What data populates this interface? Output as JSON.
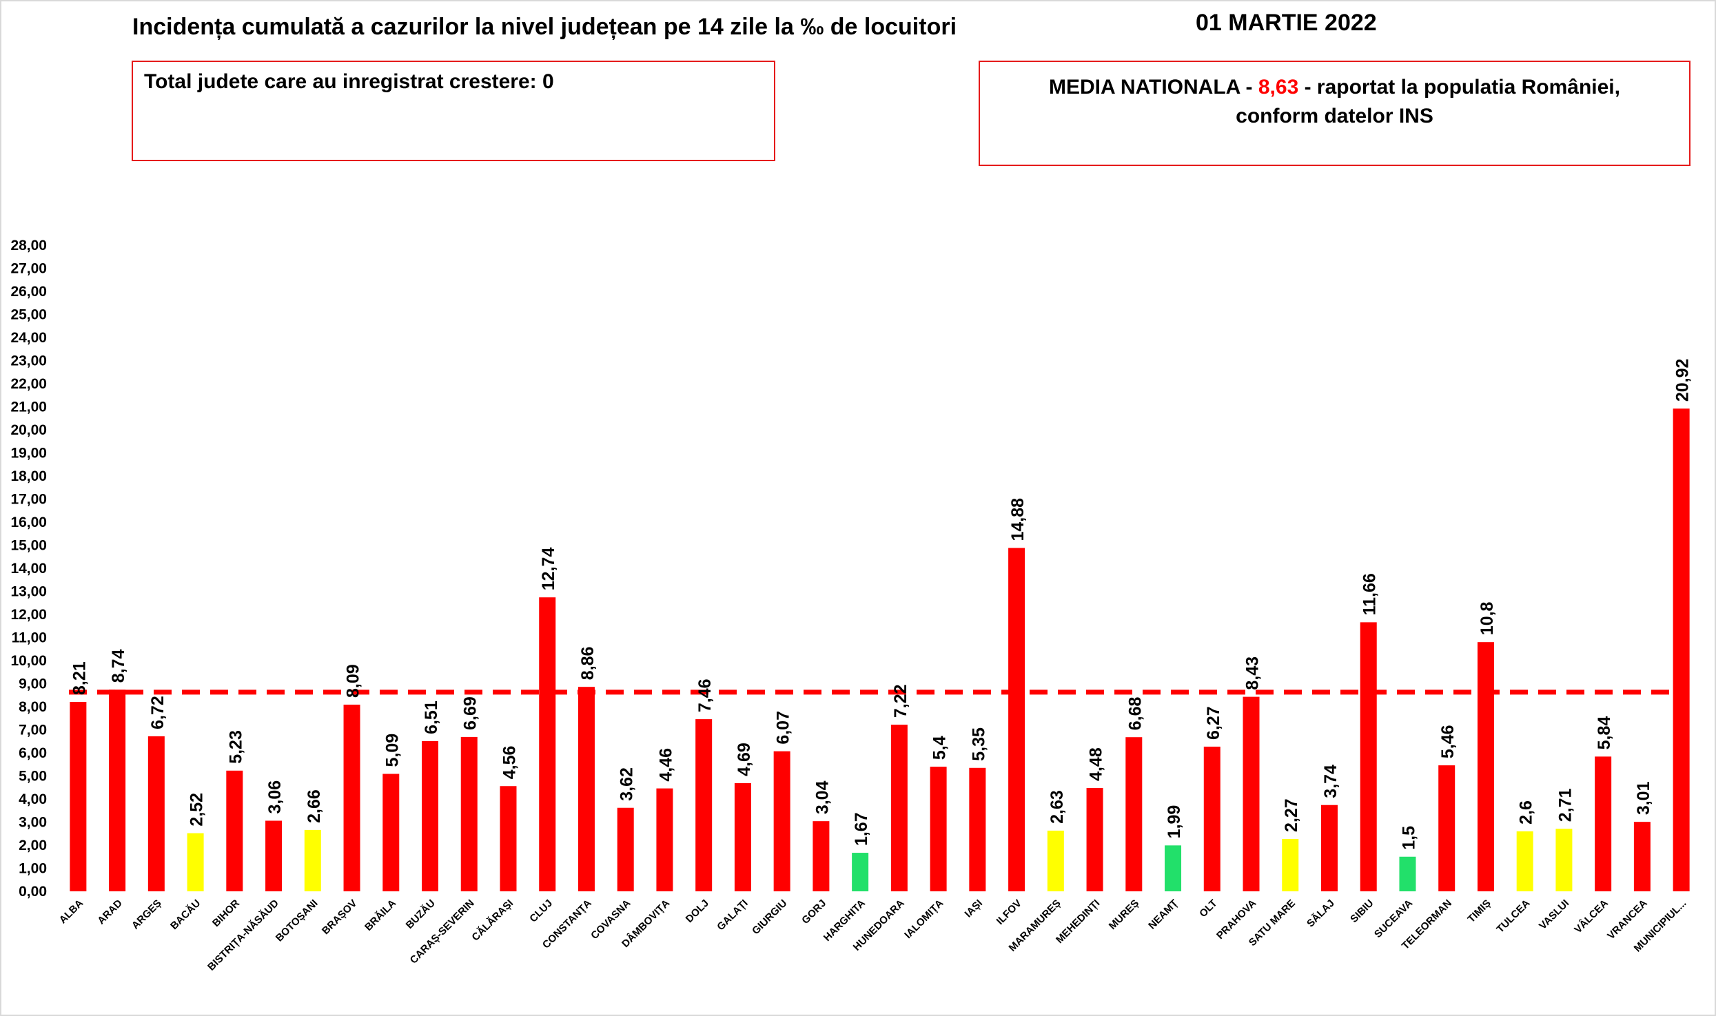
{
  "title": "Incidența cumulată a cazurilor la nivel județean pe 14 zile la ‰ de locuitori",
  "date": "01 MARTIE 2022",
  "box_left": {
    "text": "Total judete care au inregistrat crestere: 0"
  },
  "box_right": {
    "prefix": "MEDIA NATIONALA - ",
    "value": "8,63",
    "suffix": " -  raportat la populatia României,",
    "line2": "conform datelor INS"
  },
  "colors": {
    "red": "#ff0000",
    "yellow": "#ffff00",
    "green": "#22e06a",
    "average_line": "#ff0000",
    "box_border": "#e51a1a"
  },
  "chart_data": {
    "type": "bar",
    "ylim": [
      0,
      28
    ],
    "ytick_step": 1,
    "ytick_labels": [
      "0,00",
      "1,00",
      "2,00",
      "3,00",
      "4,00",
      "5,00",
      "6,00",
      "7,00",
      "8,00",
      "9,00",
      "10,00",
      "11,00",
      "12,00",
      "13,00",
      "14,00",
      "15,00",
      "16,00",
      "17,00",
      "18,00",
      "19,00",
      "20,00",
      "21,00",
      "22,00",
      "23,00",
      "24,00",
      "25,00",
      "26,00",
      "27,00",
      "28,00"
    ],
    "average": 8.63,
    "categories": [
      "ALBA",
      "ARAD",
      "ARGEȘ",
      "BACĂU",
      "BIHOR",
      "BISTRIȚA-NĂSĂUD",
      "BOTOȘANI",
      "BRAȘOV",
      "BRĂILA",
      "BUZĂU",
      "CARAȘ-SEVERIN",
      "CĂLĂRAȘI",
      "CLUJ",
      "CONSTANȚA",
      "COVASNA",
      "DÂMBOVIȚA",
      "DOLJ",
      "GALAȚI",
      "GIURGIU",
      "GORJ",
      "HARGHITA",
      "HUNEDOARA",
      "IALOMIȚA",
      "IAȘI",
      "ILFOV",
      "MARAMUREȘ",
      "MEHEDINȚI",
      "MUREȘ",
      "NEAMȚ",
      "OLT",
      "PRAHOVA",
      "SATU MARE",
      "SĂLAJ",
      "SIBIU",
      "SUCEAVA",
      "TELEORMAN",
      "TIMIȘ",
      "TULCEA",
      "VASLUI",
      "VÂLCEA",
      "VRANCEA",
      "MUNICIPIUL..."
    ],
    "values": [
      8.21,
      8.74,
      6.72,
      2.52,
      5.23,
      3.06,
      2.66,
      8.09,
      5.09,
      6.51,
      6.69,
      4.56,
      12.74,
      8.86,
      3.62,
      4.46,
      7.46,
      4.69,
      6.07,
      3.04,
      1.67,
      7.22,
      5.4,
      5.35,
      14.88,
      2.63,
      4.48,
      6.68,
      1.99,
      6.27,
      8.43,
      2.27,
      3.74,
      11.66,
      1.5,
      5.46,
      10.8,
      2.6,
      2.71,
      5.84,
      3.01,
      20.92
    ],
    "value_labels": [
      "8,21",
      "8,74",
      "6,72",
      "2,52",
      "5,23",
      "3,06",
      "2,66",
      "8,09",
      "5,09",
      "6,51",
      "6,69",
      "4,56",
      "12,74",
      "8,86",
      "3,62",
      "4,46",
      "7,46",
      "4,69",
      "6,07",
      "3,04",
      "1,67",
      "7,22",
      "5,4",
      "5,35",
      "14,88",
      "2,63",
      "4,48",
      "6,68",
      "1,99",
      "6,27",
      "8,43",
      "2,27",
      "3,74",
      "11,66",
      "1,5",
      "5,46",
      "10,8",
      "2,6",
      "2,71",
      "5,84",
      "3,01",
      "20,92"
    ],
    "bar_colors": [
      "red",
      "red",
      "red",
      "yellow",
      "red",
      "red",
      "yellow",
      "red",
      "red",
      "red",
      "red",
      "red",
      "red",
      "red",
      "red",
      "red",
      "red",
      "red",
      "red",
      "red",
      "green",
      "red",
      "red",
      "red",
      "red",
      "yellow",
      "red",
      "red",
      "green",
      "red",
      "red",
      "yellow",
      "red",
      "red",
      "green",
      "red",
      "red",
      "yellow",
      "yellow",
      "red",
      "red",
      "red"
    ],
    "grid": false,
    "legend": "none"
  }
}
